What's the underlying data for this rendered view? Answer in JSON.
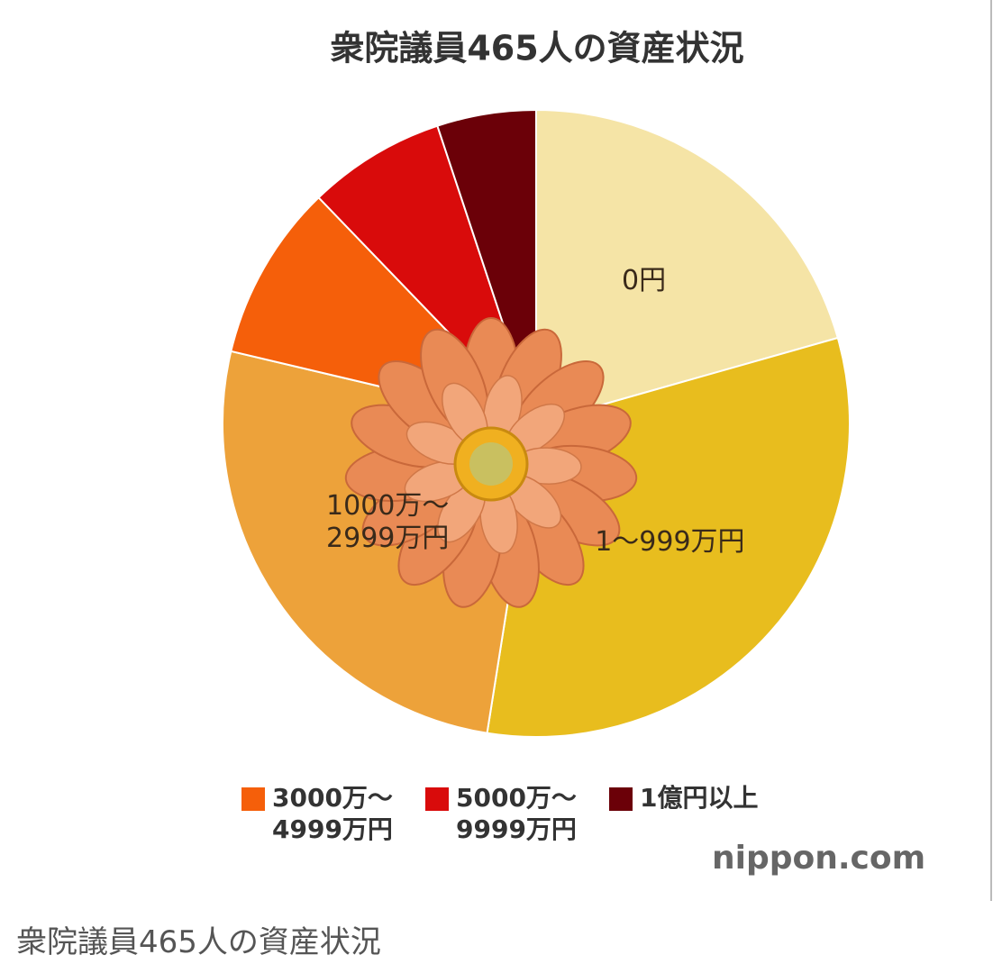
{
  "chart_data": {
    "type": "pie",
    "title": "衆院議員465人の資産状況",
    "categories": [
      "0円",
      "1～999万円",
      "1000万～2999万円",
      "3000万～4999万円",
      "5000万～9999万円",
      "1億円以上"
    ],
    "values": [
      20.6,
      31.9,
      26.2,
      9.1,
      7.1,
      5.1
    ],
    "colors": [
      "#f5e4a6",
      "#e8bd1e",
      "#eda23a",
      "#f55f0a",
      "#d90b0b",
      "#6b0008"
    ],
    "legend": "bottom",
    "source": "nippon.com"
  },
  "caption": "衆院議員465人の資産状況"
}
